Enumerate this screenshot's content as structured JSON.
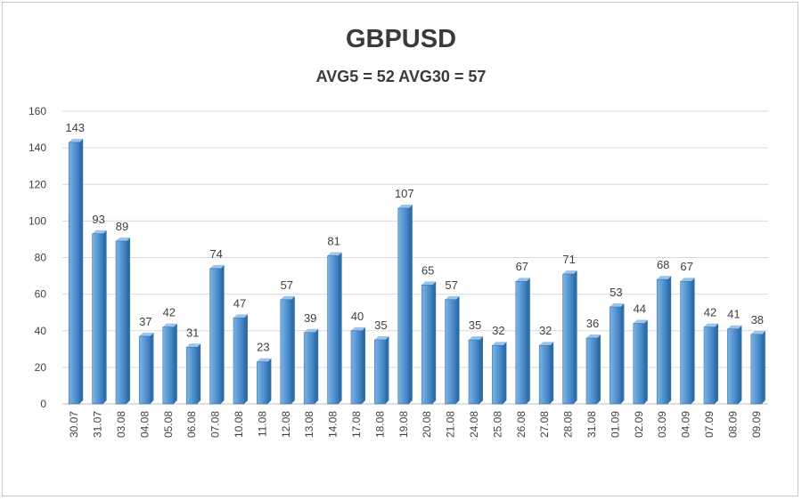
{
  "chart_data": {
    "type": "bar",
    "title": "GBPUSD",
    "subtitle": "AVG5 = 52 AVG30 = 57",
    "categories": [
      "30.07",
      "31.07",
      "03.08",
      "04.08",
      "05.08",
      "06.08",
      "07.08",
      "10.08",
      "11.08",
      "12.08",
      "13.08",
      "14.08",
      "17.08",
      "18.08",
      "19.08",
      "20.08",
      "21.08",
      "24.08",
      "25.08",
      "26.08",
      "27.08",
      "28.08",
      "31.08",
      "01.09",
      "02.09",
      "03.09",
      "04.09",
      "07.09",
      "08.09",
      "09.09"
    ],
    "values": [
      143,
      93,
      89,
      37,
      42,
      31,
      74,
      47,
      23,
      57,
      39,
      81,
      40,
      35,
      107,
      65,
      57,
      35,
      32,
      67,
      32,
      71,
      36,
      53,
      44,
      68,
      67,
      42,
      41,
      38
    ],
    "ylim": [
      0,
      160
    ],
    "yticks": [
      0,
      20,
      40,
      60,
      80,
      100,
      120,
      140,
      160
    ],
    "grid": true,
    "legend": "none",
    "colors": {
      "bar": "#5b9bd5",
      "bar_dark": "#2f6ea8",
      "grid": "#d9d9d9",
      "text": "#404040"
    }
  }
}
